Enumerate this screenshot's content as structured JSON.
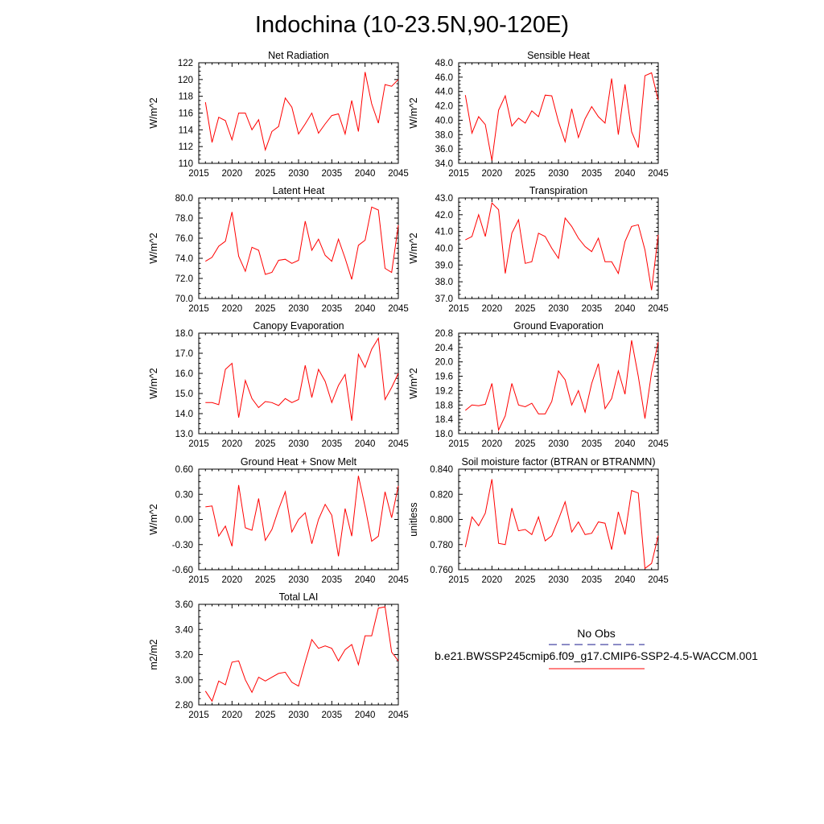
{
  "figure_title": "Indochina (10-23.5N,90-120E)",
  "legend": {
    "obs_label": "No Obs",
    "model_label": "b.e21.BWSSP245cmip6.f09_g17.CMIP6-SSP2-4.5-WACCM.001",
    "obs_color": "#1a1a8c",
    "model_color": "#ff0000"
  },
  "chart_data": [
    {
      "type": "line",
      "title": "Net Radiation",
      "ylabel": "W/m^2",
      "x": [
        2016,
        2017,
        2018,
        2019,
        2020,
        2021,
        2022,
        2023,
        2024,
        2025,
        2026,
        2027,
        2028,
        2029,
        2030,
        2031,
        2032,
        2033,
        2034,
        2035,
        2036,
        2037,
        2038,
        2039,
        2040,
        2041,
        2042,
        2043,
        2044,
        2045
      ],
      "xlim": [
        2015,
        2045
      ],
      "xticks": [
        2015,
        2020,
        2025,
        2030,
        2035,
        2040,
        2045
      ],
      "ylim": [
        110,
        122
      ],
      "yticks": [
        "110",
        "112",
        "114",
        "116",
        "118",
        "120",
        "122"
      ],
      "series": [
        {
          "color": "#ff0000",
          "values": [
            117.3,
            112.5,
            115.5,
            115.1,
            112.8,
            116.0,
            116.0,
            114.0,
            115.2,
            111.6,
            113.8,
            114.4,
            117.8,
            116.7,
            113.5,
            114.7,
            116.0,
            113.6,
            114.7,
            115.7,
            115.9,
            113.5,
            117.5,
            113.8,
            120.9,
            117.1,
            114.8,
            119.4,
            119.2,
            120.0
          ]
        }
      ]
    },
    {
      "type": "line",
      "title": "Sensible Heat",
      "ylabel": "W/m^2",
      "x": [
        2016,
        2017,
        2018,
        2019,
        2020,
        2021,
        2022,
        2023,
        2024,
        2025,
        2026,
        2027,
        2028,
        2029,
        2030,
        2031,
        2032,
        2033,
        2034,
        2035,
        2036,
        2037,
        2038,
        2039,
        2040,
        2041,
        2042,
        2043,
        2044,
        2045
      ],
      "xlim": [
        2015,
        2045
      ],
      "xticks": [
        2015,
        2020,
        2025,
        2030,
        2035,
        2040,
        2045
      ],
      "ylim": [
        34,
        48
      ],
      "yticks": [
        "34.0",
        "36.0",
        "38.0",
        "40.0",
        "42.0",
        "44.0",
        "46.0",
        "48.0"
      ],
      "series": [
        {
          "color": "#ff0000",
          "values": [
            43.5,
            38.2,
            40.5,
            39.4,
            34.4,
            41.4,
            43.4,
            39.2,
            40.3,
            39.6,
            41.3,
            40.5,
            43.5,
            43.4,
            39.8,
            37.0,
            41.6,
            37.6,
            40.2,
            41.9,
            40.5,
            39.6,
            45.8,
            38.0,
            45.0,
            38.4,
            36.2,
            46.2,
            46.6,
            42.8
          ]
        }
      ]
    },
    {
      "type": "line",
      "title": "Latent Heat",
      "ylabel": "W/m^2",
      "x": [
        2016,
        2017,
        2018,
        2019,
        2020,
        2021,
        2022,
        2023,
        2024,
        2025,
        2026,
        2027,
        2028,
        2029,
        2030,
        2031,
        2032,
        2033,
        2034,
        2035,
        2036,
        2037,
        2038,
        2039,
        2040,
        2041,
        2042,
        2043,
        2044,
        2045
      ],
      "xlim": [
        2015,
        2045
      ],
      "xticks": [
        2015,
        2020,
        2025,
        2030,
        2035,
        2040,
        2045
      ],
      "ylim": [
        70,
        80
      ],
      "yticks": [
        "70.0",
        "72.0",
        "74.0",
        "76.0",
        "78.0",
        "80.0"
      ],
      "series": [
        {
          "color": "#ff0000",
          "values": [
            73.7,
            74.1,
            75.2,
            75.7,
            78.6,
            74.2,
            72.7,
            75.1,
            74.8,
            72.4,
            72.6,
            73.8,
            73.9,
            73.5,
            73.8,
            77.7,
            74.8,
            75.9,
            74.3,
            73.7,
            75.9,
            74.0,
            71.9,
            75.3,
            75.8,
            79.1,
            78.8,
            73.0,
            72.6,
            77.3
          ]
        }
      ]
    },
    {
      "type": "line",
      "title": "Transpiration",
      "ylabel": "W/m^2",
      "x": [
        2016,
        2017,
        2018,
        2019,
        2020,
        2021,
        2022,
        2023,
        2024,
        2025,
        2026,
        2027,
        2028,
        2029,
        2030,
        2031,
        2032,
        2033,
        2034,
        2035,
        2036,
        2037,
        2038,
        2039,
        2040,
        2041,
        2042,
        2043,
        2044,
        2045
      ],
      "xlim": [
        2015,
        2045
      ],
      "xticks": [
        2015,
        2020,
        2025,
        2030,
        2035,
        2040,
        2045
      ],
      "ylim": [
        37,
        43
      ],
      "yticks": [
        "37.0",
        "38.0",
        "39.0",
        "40.0",
        "41.0",
        "42.0",
        "43.0"
      ],
      "series": [
        {
          "color": "#ff0000",
          "values": [
            40.5,
            40.7,
            42.0,
            40.7,
            42.7,
            42.3,
            38.5,
            40.9,
            41.7,
            39.1,
            39.2,
            40.9,
            40.7,
            40.0,
            39.4,
            41.8,
            41.3,
            40.6,
            40.1,
            39.8,
            40.6,
            39.2,
            39.2,
            38.5,
            40.4,
            41.3,
            41.4,
            39.9,
            37.5,
            40.8
          ]
        }
      ]
    },
    {
      "type": "line",
      "title": "Canopy Evaporation",
      "ylabel": "W/m^2",
      "x": [
        2016,
        2017,
        2018,
        2019,
        2020,
        2021,
        2022,
        2023,
        2024,
        2025,
        2026,
        2027,
        2028,
        2029,
        2030,
        2031,
        2032,
        2033,
        2034,
        2035,
        2036,
        2037,
        2038,
        2039,
        2040,
        2041,
        2042,
        2043,
        2044,
        2045
      ],
      "xlim": [
        2015,
        2045
      ],
      "xticks": [
        2015,
        2020,
        2025,
        2030,
        2035,
        2040,
        2045
      ],
      "ylim": [
        13,
        18
      ],
      "yticks": [
        "13.0",
        "14.0",
        "15.0",
        "16.0",
        "17.0",
        "18.0"
      ],
      "series": [
        {
          "color": "#ff0000",
          "values": [
            14.55,
            14.55,
            14.45,
            16.2,
            16.5,
            13.8,
            15.65,
            14.75,
            14.3,
            14.6,
            14.55,
            14.4,
            14.75,
            14.55,
            14.7,
            16.4,
            14.8,
            16.2,
            15.6,
            14.55,
            15.4,
            15.95,
            13.65,
            16.95,
            16.3,
            17.2,
            17.75,
            14.7,
            15.3,
            16.0
          ]
        }
      ]
    },
    {
      "type": "line",
      "title": "Ground Evaporation",
      "ylabel": "W/m^2",
      "x": [
        2016,
        2017,
        2018,
        2019,
        2020,
        2021,
        2022,
        2023,
        2024,
        2025,
        2026,
        2027,
        2028,
        2029,
        2030,
        2031,
        2032,
        2033,
        2034,
        2035,
        2036,
        2037,
        2038,
        2039,
        2040,
        2041,
        2042,
        2043,
        2044,
        2045
      ],
      "xlim": [
        2015,
        2045
      ],
      "xticks": [
        2015,
        2020,
        2025,
        2030,
        2035,
        2040,
        2045
      ],
      "ylim": [
        18.0,
        20.8
      ],
      "yticks": [
        "18.0",
        "18.4",
        "18.8",
        "19.2",
        "19.6",
        "20.0",
        "20.4",
        "20.8"
      ],
      "series": [
        {
          "color": "#ff0000",
          "values": [
            18.65,
            18.8,
            18.78,
            18.82,
            19.4,
            18.1,
            18.5,
            19.4,
            18.8,
            18.75,
            18.85,
            18.55,
            18.55,
            18.9,
            19.75,
            19.5,
            18.8,
            19.2,
            18.6,
            19.4,
            19.95,
            18.7,
            18.98,
            19.75,
            19.1,
            20.6,
            19.6,
            18.42,
            19.7,
            20.55
          ]
        }
      ]
    },
    {
      "type": "line",
      "title": "Ground Heat + Snow Melt",
      "ylabel": "W/m^2",
      "x": [
        2016,
        2017,
        2018,
        2019,
        2020,
        2021,
        2022,
        2023,
        2024,
        2025,
        2026,
        2027,
        2028,
        2029,
        2030,
        2031,
        2032,
        2033,
        2034,
        2035,
        2036,
        2037,
        2038,
        2039,
        2040,
        2041,
        2042,
        2043,
        2044,
        2045
      ],
      "xlim": [
        2015,
        2045
      ],
      "xticks": [
        2015,
        2020,
        2025,
        2030,
        2035,
        2040,
        2045
      ],
      "ylim": [
        -0.6,
        0.6
      ],
      "yticks": [
        "-0.60",
        "-0.30",
        "0.00",
        "0.30",
        "0.60"
      ],
      "series": [
        {
          "color": "#ff0000",
          "values": [
            0.15,
            0.16,
            -0.2,
            -0.08,
            -0.32,
            0.41,
            -0.1,
            -0.13,
            0.25,
            -0.25,
            -0.12,
            0.12,
            0.33,
            -0.15,
            0.0,
            0.08,
            -0.29,
            0.0,
            0.18,
            0.05,
            -0.44,
            0.13,
            -0.2,
            0.52,
            0.15,
            -0.26,
            -0.2,
            0.33,
            0.02,
            0.4
          ]
        }
      ]
    },
    {
      "type": "line",
      "title": "Soil moisture factor (BTRAN or BTRANMN)",
      "ylabel": "unitless",
      "x": [
        2016,
        2017,
        2018,
        2019,
        2020,
        2021,
        2022,
        2023,
        2024,
        2025,
        2026,
        2027,
        2028,
        2029,
        2030,
        2031,
        2032,
        2033,
        2034,
        2035,
        2036,
        2037,
        2038,
        2039,
        2040,
        2041,
        2042,
        2043,
        2044,
        2045
      ],
      "xlim": [
        2015,
        2045
      ],
      "xticks": [
        2015,
        2020,
        2025,
        2030,
        2035,
        2040,
        2045
      ],
      "ylim": [
        0.76,
        0.84
      ],
      "yticks": [
        "0.760",
        "0.780",
        "0.800",
        "0.820",
        "0.840"
      ],
      "series": [
        {
          "color": "#ff0000",
          "values": [
            0.778,
            0.802,
            0.795,
            0.805,
            0.832,
            0.781,
            0.78,
            0.809,
            0.791,
            0.792,
            0.788,
            0.802,
            0.783,
            0.787,
            0.8,
            0.814,
            0.79,
            0.798,
            0.788,
            0.789,
            0.798,
            0.797,
            0.776,
            0.806,
            0.788,
            0.823,
            0.821,
            0.761,
            0.765,
            0.787
          ]
        }
      ]
    },
    {
      "type": "line",
      "title": "Total LAI",
      "ylabel": "m2/m2",
      "x": [
        2016,
        2017,
        2018,
        2019,
        2020,
        2021,
        2022,
        2023,
        2024,
        2025,
        2026,
        2027,
        2028,
        2029,
        2030,
        2031,
        2032,
        2033,
        2034,
        2035,
        2036,
        2037,
        2038,
        2039,
        2040,
        2041,
        2042,
        2043,
        2044,
        2045
      ],
      "xlim": [
        2015,
        2045
      ],
      "xticks": [
        2015,
        2020,
        2025,
        2030,
        2035,
        2040,
        2045
      ],
      "ylim": [
        2.8,
        3.6
      ],
      "yticks": [
        "2.80",
        "3.00",
        "3.20",
        "3.40",
        "3.60"
      ],
      "series": [
        {
          "color": "#ff0000",
          "values": [
            2.91,
            2.83,
            2.99,
            2.96,
            3.14,
            3.15,
            3.0,
            2.9,
            3.02,
            2.99,
            3.02,
            3.05,
            3.06,
            2.98,
            2.95,
            3.14,
            3.32,
            3.25,
            3.27,
            3.25,
            3.15,
            3.24,
            3.28,
            3.12,
            3.35,
            3.35,
            3.57,
            3.58,
            3.22,
            3.15
          ]
        }
      ]
    }
  ]
}
